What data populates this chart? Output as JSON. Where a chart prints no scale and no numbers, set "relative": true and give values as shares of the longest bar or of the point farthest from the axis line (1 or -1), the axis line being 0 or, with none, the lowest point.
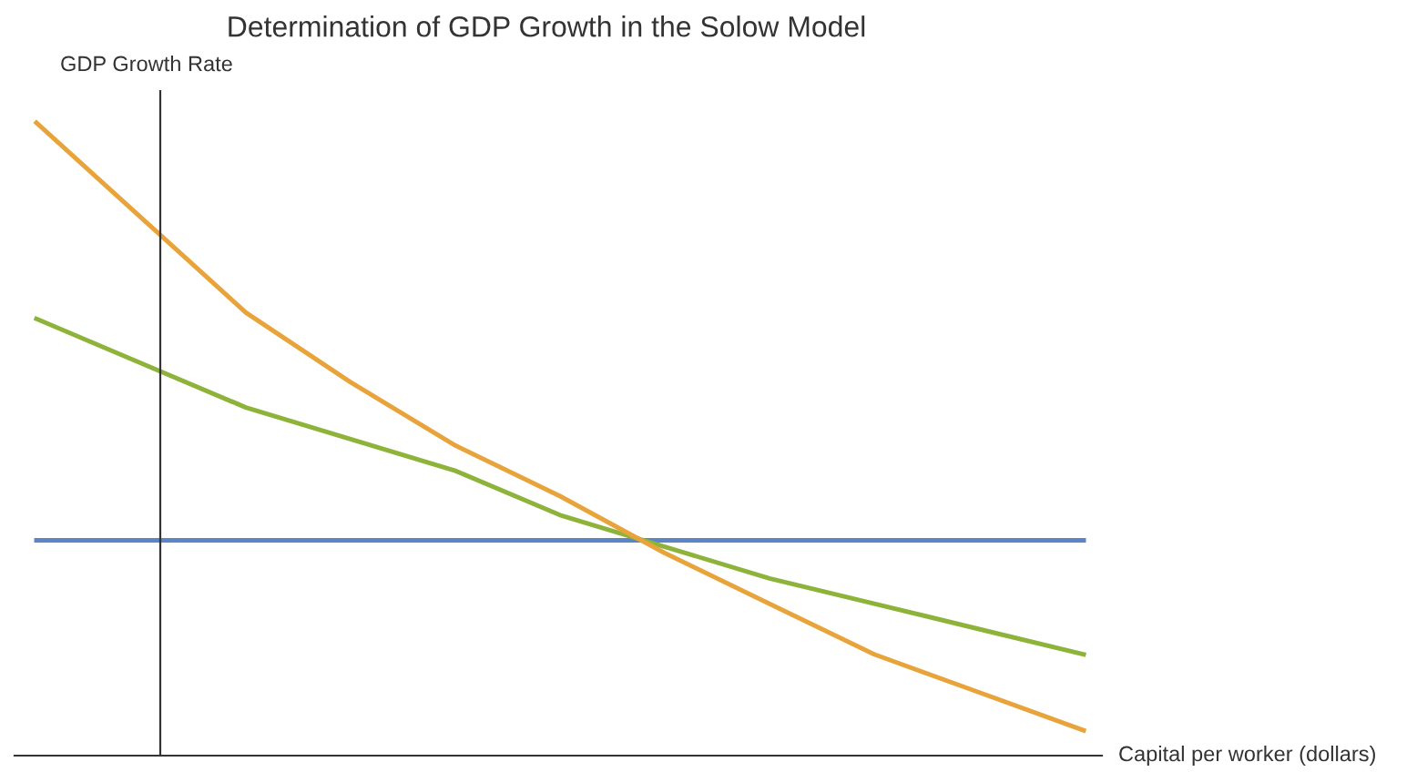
{
  "chart_data": {
    "type": "line",
    "title": "Determination of GDP Growth in the Solow Model",
    "xlabel": "Capital per worker (dollars)",
    "ylabel": "GDP Growth Rate",
    "relative": true,
    "line_style": "solid",
    "categories": [
      null,
      null,
      null,
      null,
      null,
      null,
      null,
      null,
      null,
      null,
      null
    ],
    "series": [
      {
        "color": "#5b85c6",
        "values": [
          0.34,
          0.34,
          0.34,
          0.34,
          0.34,
          0.34,
          0.34,
          0.34,
          0.34,
          0.34,
          0.34
        ]
      },
      {
        "color": "#8db33a",
        "values": [
          0.69,
          0.62,
          0.55,
          0.5,
          0.45,
          0.38,
          0.33,
          0.28,
          0.24,
          0.2,
          0.16
        ]
      },
      {
        "color": "#e8a33a",
        "values": [
          1,
          0.85,
          0.7,
          0.59,
          0.49,
          0.41,
          0.32,
          0.24,
          0.16,
          0.1,
          0.04
        ]
      }
    ]
  }
}
